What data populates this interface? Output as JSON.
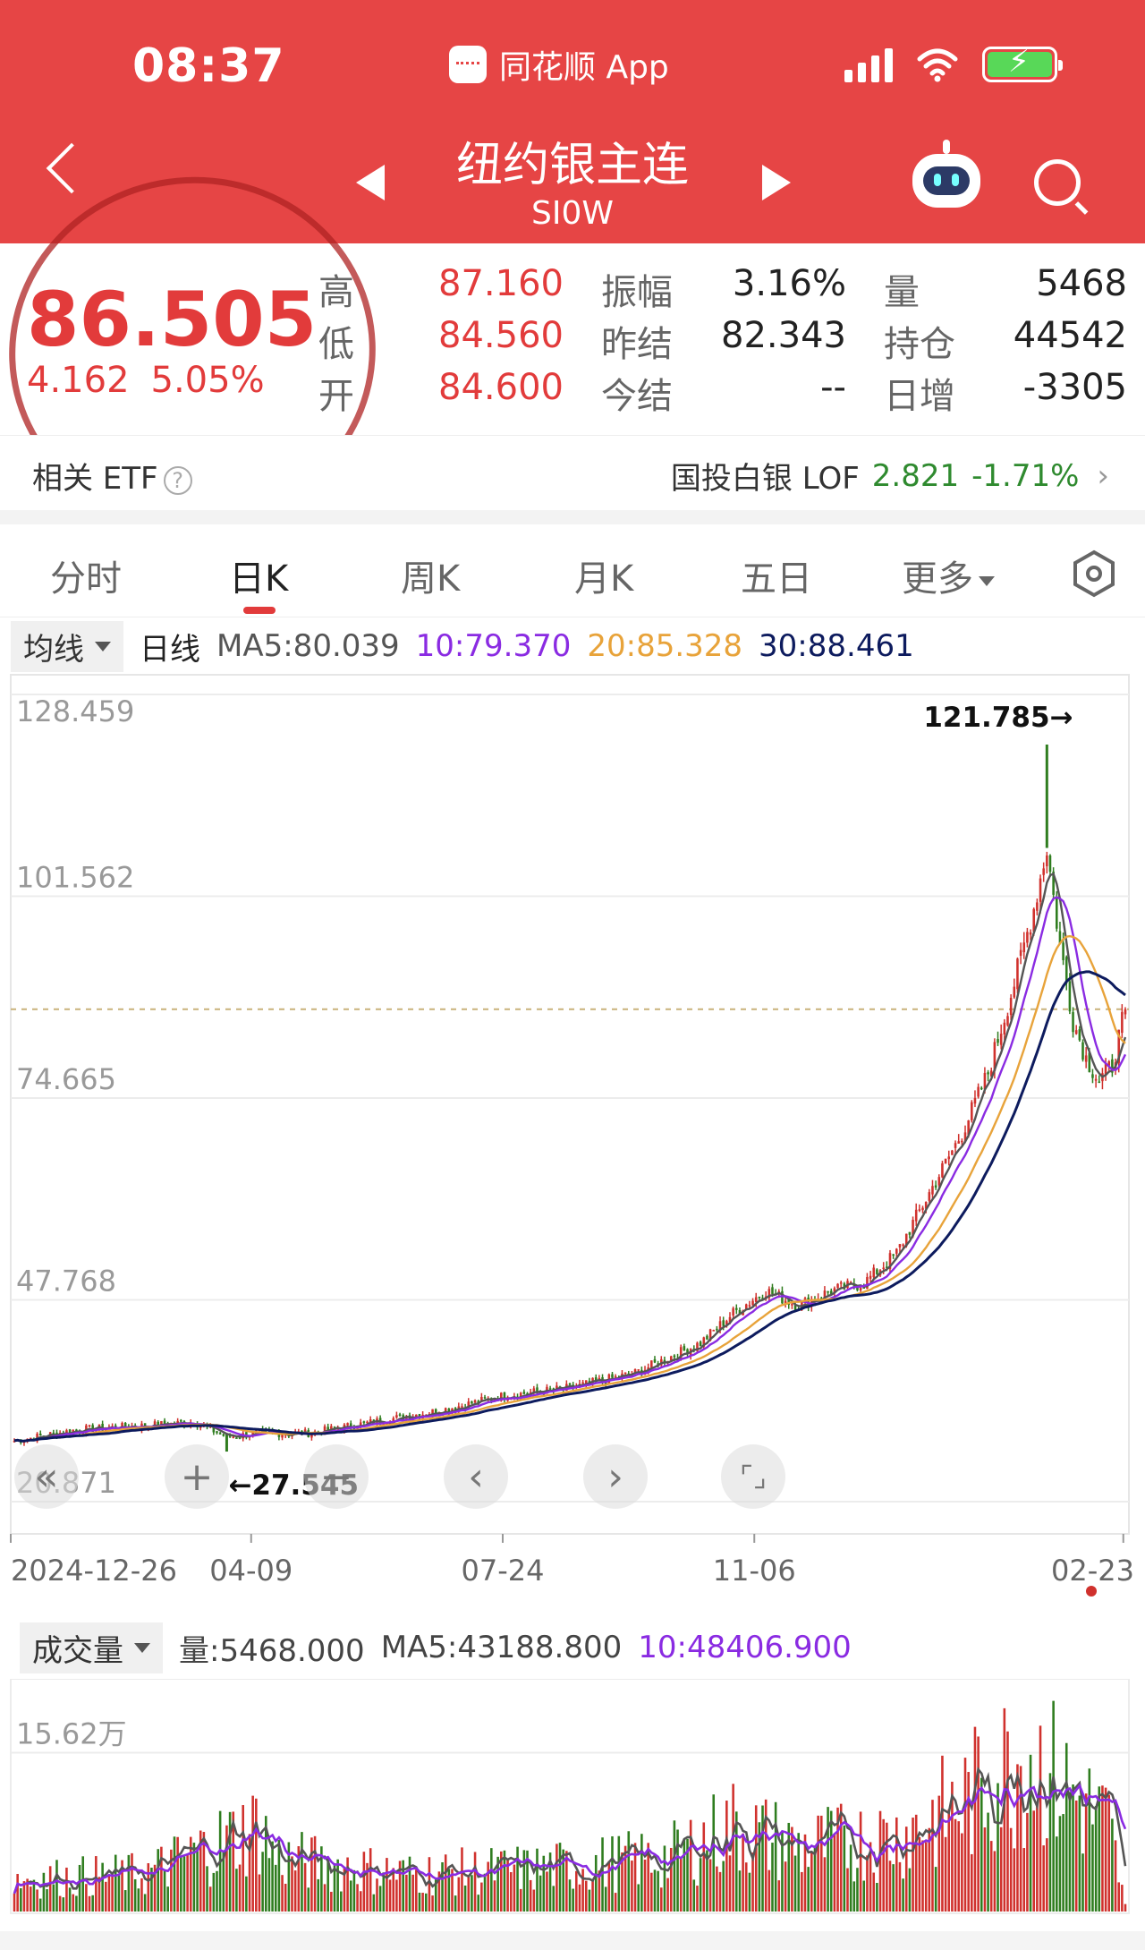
{
  "status_bar": {
    "time": "08:37",
    "app_name": "同花顺 App",
    "icons": [
      "signal-icon",
      "wifi-icon",
      "battery-charging-icon"
    ]
  },
  "header": {
    "title": "纽约银主连",
    "code": "SI0W",
    "icons": [
      "back-icon",
      "prev-icon",
      "next-icon",
      "robot-icon",
      "search-icon"
    ]
  },
  "quote": {
    "price": "86.505",
    "change": "4.162",
    "change_pct": "5.05%",
    "fields": {
      "high_label": "高",
      "high": "87.160",
      "low_label": "低",
      "low": "84.560",
      "open_label": "开",
      "open": "84.600",
      "amplitude_label": "振幅",
      "amplitude": "3.16%",
      "prev_settle_label": "昨结",
      "prev_settle": "82.343",
      "today_settle_label": "今结",
      "today_settle": "--",
      "volume_label": "量",
      "volume": "5468",
      "open_interest_label": "持仓",
      "open_interest": "44542",
      "daily_change_label": "日增",
      "daily_change": "-3305"
    }
  },
  "etf": {
    "label": "相关 ETF",
    "help": "?",
    "name": "国投白银 LOF",
    "price": "2.821",
    "change_pct": "-1.71%",
    "chevron": "›"
  },
  "tabs": [
    {
      "label": "分时"
    },
    {
      "label": "日K"
    },
    {
      "label": "周K"
    },
    {
      "label": "月K"
    },
    {
      "label": "五日"
    },
    {
      "label": "更多"
    }
  ],
  "ma_legend": {
    "dropdown": "均线",
    "period": "日线",
    "ma5": "MA5:80.039",
    "ma10": "10:79.370",
    "ma20": "20:85.328",
    "ma30": "30:88.461"
  },
  "colors": {
    "up": "#d0312d",
    "down": "#2f7d1f",
    "ma5": "#555555",
    "ma10": "#8a2be2",
    "ma20": "#e8a33a",
    "ma30": "#0d1b5e",
    "header": "#e64545"
  },
  "price_chart": {
    "y_ticks": [
      "128.459",
      "101.562",
      "74.665",
      "47.768",
      "20.871"
    ],
    "x_ticks": [
      "2024-12-26",
      "04-09",
      "07-24",
      "11-06",
      "02-23"
    ],
    "max_label": "121.785→",
    "min_label": "←27.545"
  },
  "controls": [
    "«",
    "+",
    "−",
    "‹",
    "›",
    "⌜⌟"
  ],
  "volume_legend": {
    "dropdown": "成交量",
    "vol": "量:5468.000",
    "ma5": "MA5:43188.800",
    "ma10": "10:48406.900",
    "y_tick": "15.62万"
  },
  "chart_data": [
    {
      "type": "candlestick",
      "ylim": [
        20.871,
        128.459
      ],
      "y_ticks": [
        128.459,
        101.562,
        74.665,
        47.768,
        20.871
      ],
      "x_ticks": [
        "2024-12-26",
        "04-09",
        "07-24",
        "11-06",
        "02-23"
      ],
      "close_trend": [
        [
          0,
          29
        ],
        [
          20,
          30.5
        ],
        [
          40,
          31
        ],
        [
          55,
          31.5
        ],
        [
          65,
          29.5
        ],
        [
          75,
          30
        ],
        [
          90,
          30
        ],
        [
          110,
          31.5
        ],
        [
          130,
          33
        ],
        [
          150,
          35
        ],
        [
          170,
          36
        ],
        [
          190,
          38
        ],
        [
          210,
          42
        ],
        [
          220,
          46
        ],
        [
          230,
          49
        ],
        [
          240,
          47
        ],
        [
          250,
          49
        ],
        [
          260,
          50
        ],
        [
          270,
          54
        ],
        [
          280,
          62
        ],
        [
          290,
          70
        ],
        [
          298,
          78
        ],
        [
          306,
          90
        ],
        [
          312,
          100
        ],
        [
          316,
          108
        ],
        [
          320,
          95
        ],
        [
          324,
          85
        ],
        [
          328,
          80
        ],
        [
          332,
          77
        ],
        [
          336,
          79
        ],
        [
          340,
          86.5
        ]
      ],
      "ma30_trend": [
        [
          0,
          30
        ],
        [
          60,
          31
        ],
        [
          100,
          31
        ],
        [
          150,
          34
        ],
        [
          200,
          38
        ],
        [
          240,
          46
        ],
        [
          270,
          50
        ],
        [
          290,
          58
        ],
        [
          310,
          75
        ],
        [
          320,
          88
        ],
        [
          330,
          90
        ],
        [
          340,
          91
        ]
      ],
      "max": 121.785,
      "min": 27.545,
      "last_close": 86.505
    },
    {
      "type": "bar",
      "ylabel": "",
      "y_tick": "15.62万",
      "volume_trend": [
        [
          0,
          3
        ],
        [
          40,
          3.5
        ],
        [
          75,
          8
        ],
        [
          80,
          5
        ],
        [
          120,
          3.5
        ],
        [
          160,
          4
        ],
        [
          200,
          5
        ],
        [
          220,
          8
        ],
        [
          240,
          6
        ],
        [
          270,
          7
        ],
        [
          290,
          10
        ],
        [
          310,
          15
        ],
        [
          320,
          12
        ],
        [
          335,
          8
        ],
        [
          340,
          0.5
        ]
      ],
      "volume_unit": "万"
    }
  ]
}
